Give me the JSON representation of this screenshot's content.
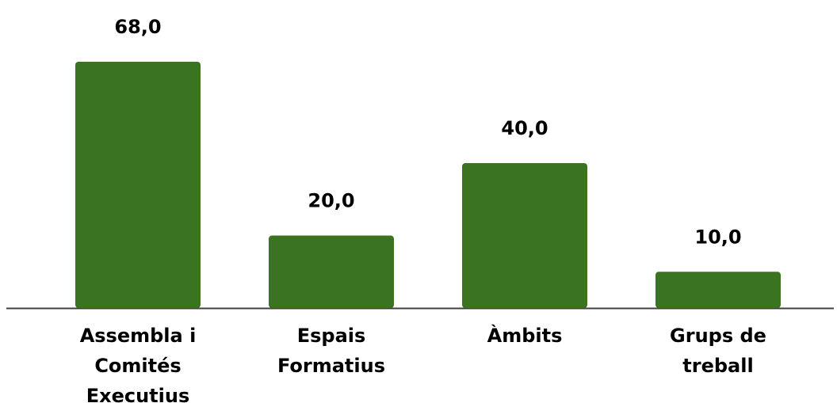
{
  "colors": {
    "bar": "#3a7420",
    "axis": "#404040",
    "text": "#000000"
  },
  "chart_data": {
    "type": "bar",
    "categories": [
      [
        "Assembla i",
        "Comités",
        "Executius"
      ],
      [
        "Espais",
        "Formatius"
      ],
      [
        "Àmbits"
      ],
      [
        "Grups de",
        "treball"
      ]
    ],
    "values": [
      68,
      20,
      40,
      10
    ],
    "value_labels": [
      "68,0",
      "20,0",
      "40,0",
      "10,0"
    ],
    "title": "",
    "xlabel": "",
    "ylabel": "",
    "ylim": [
      0,
      68
    ],
    "grid": false,
    "legend": "none"
  }
}
